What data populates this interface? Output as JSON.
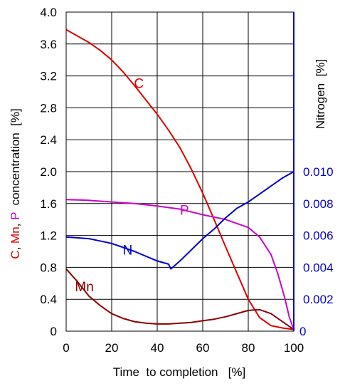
{
  "chart_data": {
    "type": "line",
    "xlabel": "Time  to completion   [%]",
    "xlim": [
      0,
      100
    ],
    "x_ticks": [
      "0",
      "20",
      "40",
      "60",
      "80",
      "100"
    ],
    "ylabel_left": {
      "parts": [
        {
          "text": "C",
          "color": "#dd0000"
        },
        {
          "text": ", ",
          "color": "#000000"
        },
        {
          "text": "Mn",
          "color": "#dd0000"
        },
        {
          "text": ", ",
          "color": "#000000"
        },
        {
          "text": "P",
          "color": "#cc00cc"
        },
        {
          "text": "  concentration  [%]",
          "color": "#000000"
        }
      ]
    },
    "ylim_left": [
      0,
      4.0
    ],
    "y_ticks_left": [
      "0",
      "0.4",
      "0.8",
      "1.2",
      "1.6",
      "2.0",
      "2.4",
      "2.8",
      "3.2",
      "3.6",
      "4.0"
    ],
    "ylabel_right": "Nitrogen  [%]",
    "ylim_right": [
      0,
      0.02
    ],
    "y_ticks_right": [
      "0",
      "0.002",
      "0.004",
      "0.006",
      "0.008",
      "0.010"
    ],
    "grid": true,
    "series": [
      {
        "name": "C",
        "color": "#dd0000",
        "axis": "left",
        "label_at": [
          32,
          3.05
        ],
        "x": [
          0,
          5,
          10,
          15,
          20,
          25,
          30,
          35,
          40,
          45,
          50,
          55,
          60,
          65,
          70,
          75,
          80,
          85,
          90,
          95,
          100
        ],
        "values": [
          3.78,
          3.7,
          3.62,
          3.52,
          3.4,
          3.25,
          3.08,
          2.9,
          2.72,
          2.52,
          2.3,
          2.03,
          1.73,
          1.4,
          1.06,
          0.73,
          0.4,
          0.17,
          0.07,
          0.04,
          0.02
        ]
      },
      {
        "name": "Mn",
        "color": "#8b0000",
        "axis": "left",
        "label_at": [
          8,
          0.5
        ],
        "x": [
          0,
          5,
          10,
          15,
          20,
          25,
          30,
          35,
          40,
          45,
          50,
          55,
          60,
          65,
          70,
          75,
          80,
          85,
          90,
          95,
          100
        ],
        "values": [
          0.78,
          0.62,
          0.44,
          0.32,
          0.22,
          0.16,
          0.12,
          0.1,
          0.09,
          0.09,
          0.1,
          0.11,
          0.13,
          0.15,
          0.18,
          0.22,
          0.26,
          0.27,
          0.22,
          0.12,
          0.02
        ]
      },
      {
        "name": "P",
        "color": "#cc00cc",
        "axis": "left",
        "label_at": [
          52,
          1.46
        ],
        "x": [
          0,
          10,
          20,
          30,
          40,
          50,
          60,
          70,
          80,
          85,
          90,
          93,
          96,
          98,
          100
        ],
        "values": [
          1.65,
          1.64,
          1.62,
          1.6,
          1.57,
          1.53,
          1.46,
          1.4,
          1.3,
          1.18,
          0.96,
          0.72,
          0.42,
          0.18,
          0.02
        ]
      },
      {
        "name": "N",
        "color": "#0000cc",
        "axis": "right",
        "label_at": [
          27,
          0.0048
        ],
        "x": [
          0,
          10,
          20,
          30,
          40,
          45,
          46,
          50,
          55,
          60,
          65,
          70,
          75,
          80,
          85,
          90,
          95,
          100
        ],
        "values": [
          0.0059,
          0.0058,
          0.0055,
          0.005,
          0.0044,
          0.0042,
          0.0039,
          0.0044,
          0.0051,
          0.0058,
          0.0064,
          0.0071,
          0.0077,
          0.0081,
          0.0086,
          0.0091,
          0.0096,
          0.01
        ]
      }
    ]
  }
}
